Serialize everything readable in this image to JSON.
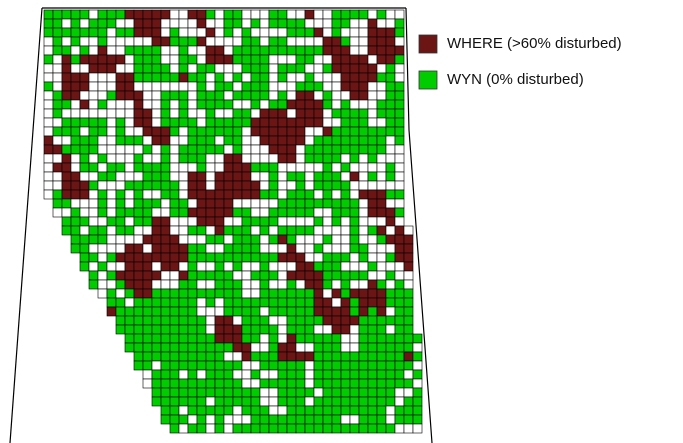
{
  "legend": {
    "items": [
      {
        "label": "WHERE (>60% disturbed)",
        "color": "#6b1515"
      },
      {
        "label": "WYN (0% disturbed)",
        "color": "#00cc00"
      }
    ]
  }
}
